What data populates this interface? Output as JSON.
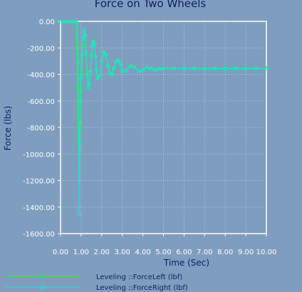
{
  "chart_data": {
    "type": "line",
    "title": "Force on Two Wheels",
    "xlabel": "Time (Sec)",
    "ylabel": "Force (lbs)",
    "xlim": [
      0,
      10
    ],
    "ylim": [
      -1600,
      0
    ],
    "x_ticks": [
      0,
      1,
      2,
      3,
      4,
      5,
      6,
      7,
      8,
      9,
      10
    ],
    "x_tick_labels": [
      "0.00",
      "1.00",
      "2.00",
      "3.00",
      "4.00",
      "5.00",
      "6.00",
      "7.00",
      "8.00",
      "9.00",
      "10.00"
    ],
    "y_ticks": [
      0,
      -200,
      -400,
      -600,
      -800,
      -1000,
      -1200,
      -1400,
      -1600
    ],
    "y_tick_labels": [
      "0.00",
      "-200.00",
      "-400.00",
      "-600.00",
      "-800.00",
      "-1000.00",
      "-1200.00",
      "-1400.00",
      "-1600.00"
    ],
    "grid": true,
    "legend_position": "bottom",
    "series": [
      {
        "name": "Leveling ::ForceLeft (lbf)",
        "color": "#2ee84a",
        "marker": "circle",
        "x": [
          0,
          0.2,
          0.4,
          0.6,
          0.72,
          0.78,
          0.82,
          0.85,
          0.88,
          0.92,
          0.96,
          1.0,
          1.05,
          1.1,
          1.15,
          1.2,
          1.25,
          1.3,
          1.35,
          1.4,
          1.45,
          1.5,
          1.55,
          1.6,
          1.65,
          1.7,
          1.75,
          1.8,
          1.9,
          2.0,
          2.1,
          2.2,
          2.3,
          2.4,
          2.5,
          2.6,
          2.7,
          2.8,
          2.9,
          3.0,
          3.2,
          3.4,
          3.6,
          3.8,
          4.0,
          4.2,
          4.4,
          4.6,
          4.8,
          5.0,
          5.5,
          6.0,
          6.5,
          7.0,
          7.5,
          8.0,
          8.5,
          9.0,
          9.5,
          10.0
        ],
        "y": [
          0,
          0,
          0,
          0,
          0,
          -200,
          -500,
          -920,
          -650,
          -1100,
          -800,
          -520,
          -380,
          -180,
          -80,
          -120,
          -250,
          -420,
          -500,
          -480,
          -380,
          -260,
          -180,
          -150,
          -170,
          -260,
          -360,
          -430,
          -410,
          -300,
          -230,
          -250,
          -330,
          -390,
          -400,
          -350,
          -300,
          -290,
          -320,
          -370,
          -370,
          -335,
          -345,
          -375,
          -365,
          -345,
          -355,
          -362,
          -357,
          -352,
          -355,
          -356,
          -355,
          -355,
          -355,
          -355,
          -355,
          -355,
          -355,
          -355
        ]
      },
      {
        "name": "Leveling ::ForceRight (lbf)",
        "color": "#1fe3cf",
        "marker": "triangle",
        "x": [
          0,
          0.2,
          0.4,
          0.6,
          0.8,
          0.86,
          0.9,
          0.93,
          0.96,
          1.0,
          1.05,
          1.1,
          1.15,
          1.2,
          1.25,
          1.3,
          1.35,
          1.4,
          1.45,
          1.5,
          1.55,
          1.6,
          1.65,
          1.7,
          1.75,
          1.8,
          1.9,
          2.0,
          2.1,
          2.2,
          2.3,
          2.4,
          2.5,
          2.6,
          2.7,
          2.8,
          2.9,
          3.0,
          3.2,
          3.4,
          3.6,
          3.8,
          4.0,
          4.2,
          4.4,
          4.6,
          4.8,
          5.0,
          5.5,
          6.0,
          6.5,
          7.0,
          7.5,
          8.0,
          8.5,
          9.0,
          9.5,
          10.0
        ],
        "y": [
          0,
          0,
          0,
          0,
          0,
          -300,
          -1450,
          -900,
          -600,
          -420,
          -250,
          -120,
          -60,
          -100,
          -230,
          -400,
          -500,
          -470,
          -370,
          -250,
          -180,
          -150,
          -170,
          -260,
          -360,
          -430,
          -410,
          -300,
          -230,
          -250,
          -330,
          -390,
          -400,
          -350,
          -300,
          -290,
          -320,
          -370,
          -370,
          -335,
          -345,
          -375,
          -365,
          -345,
          -355,
          -362,
          -357,
          -352,
          -355,
          -356,
          -355,
          -355,
          -355,
          -355,
          -355,
          -355,
          -355,
          -355
        ]
      }
    ]
  }
}
